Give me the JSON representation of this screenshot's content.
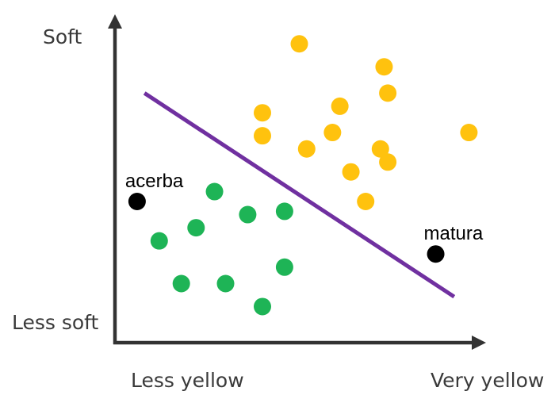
{
  "chart_data": {
    "type": "scatter",
    "title": "",
    "xlabel": "",
    "ylabel": "",
    "x_axis": {
      "min_label": "Less yellow",
      "max_label": "Very yellow"
    },
    "y_axis": {
      "min_label": "Less soft",
      "max_label": "Soft"
    },
    "xlim": [
      0,
      10
    ],
    "ylim": [
      0,
      10
    ],
    "grid": false,
    "axis_color": "#333333",
    "series": [
      {
        "color": "#ffc20e",
        "points": [
          {
            "x": 5.0,
            "y": 9.1
          },
          {
            "x": 7.3,
            "y": 8.4
          },
          {
            "x": 7.4,
            "y": 7.6
          },
          {
            "x": 6.1,
            "y": 7.2
          },
          {
            "x": 4.0,
            "y": 7.0
          },
          {
            "x": 4.0,
            "y": 6.3
          },
          {
            "x": 5.9,
            "y": 6.4
          },
          {
            "x": 9.6,
            "y": 6.4
          },
          {
            "x": 5.2,
            "y": 5.9
          },
          {
            "x": 7.2,
            "y": 5.9
          },
          {
            "x": 7.4,
            "y": 5.5
          },
          {
            "x": 6.4,
            "y": 5.2
          },
          {
            "x": 6.8,
            "y": 4.3
          }
        ]
      },
      {
        "color": "#1eb456",
        "points": [
          {
            "x": 2.7,
            "y": 4.6
          },
          {
            "x": 3.6,
            "y": 3.9
          },
          {
            "x": 4.6,
            "y": 4.0
          },
          {
            "x": 2.2,
            "y": 3.5
          },
          {
            "x": 1.2,
            "y": 3.1
          },
          {
            "x": 4.6,
            "y": 2.3
          },
          {
            "x": 1.8,
            "y": 1.8
          },
          {
            "x": 3.0,
            "y": 1.8
          },
          {
            "x": 4.0,
            "y": 1.1
          }
        ]
      }
    ],
    "boundary": {
      "color": "#7030a0",
      "x": [
        0.8,
        9.2
      ],
      "y": [
        7.6,
        1.4
      ]
    },
    "labeled_points": [
      {
        "label": "acerba",
        "x": 0.6,
        "y": 4.3,
        "color": "#000000"
      },
      {
        "label": "matura",
        "x": 8.7,
        "y": 2.7,
        "color": "#000000"
      }
    ]
  }
}
